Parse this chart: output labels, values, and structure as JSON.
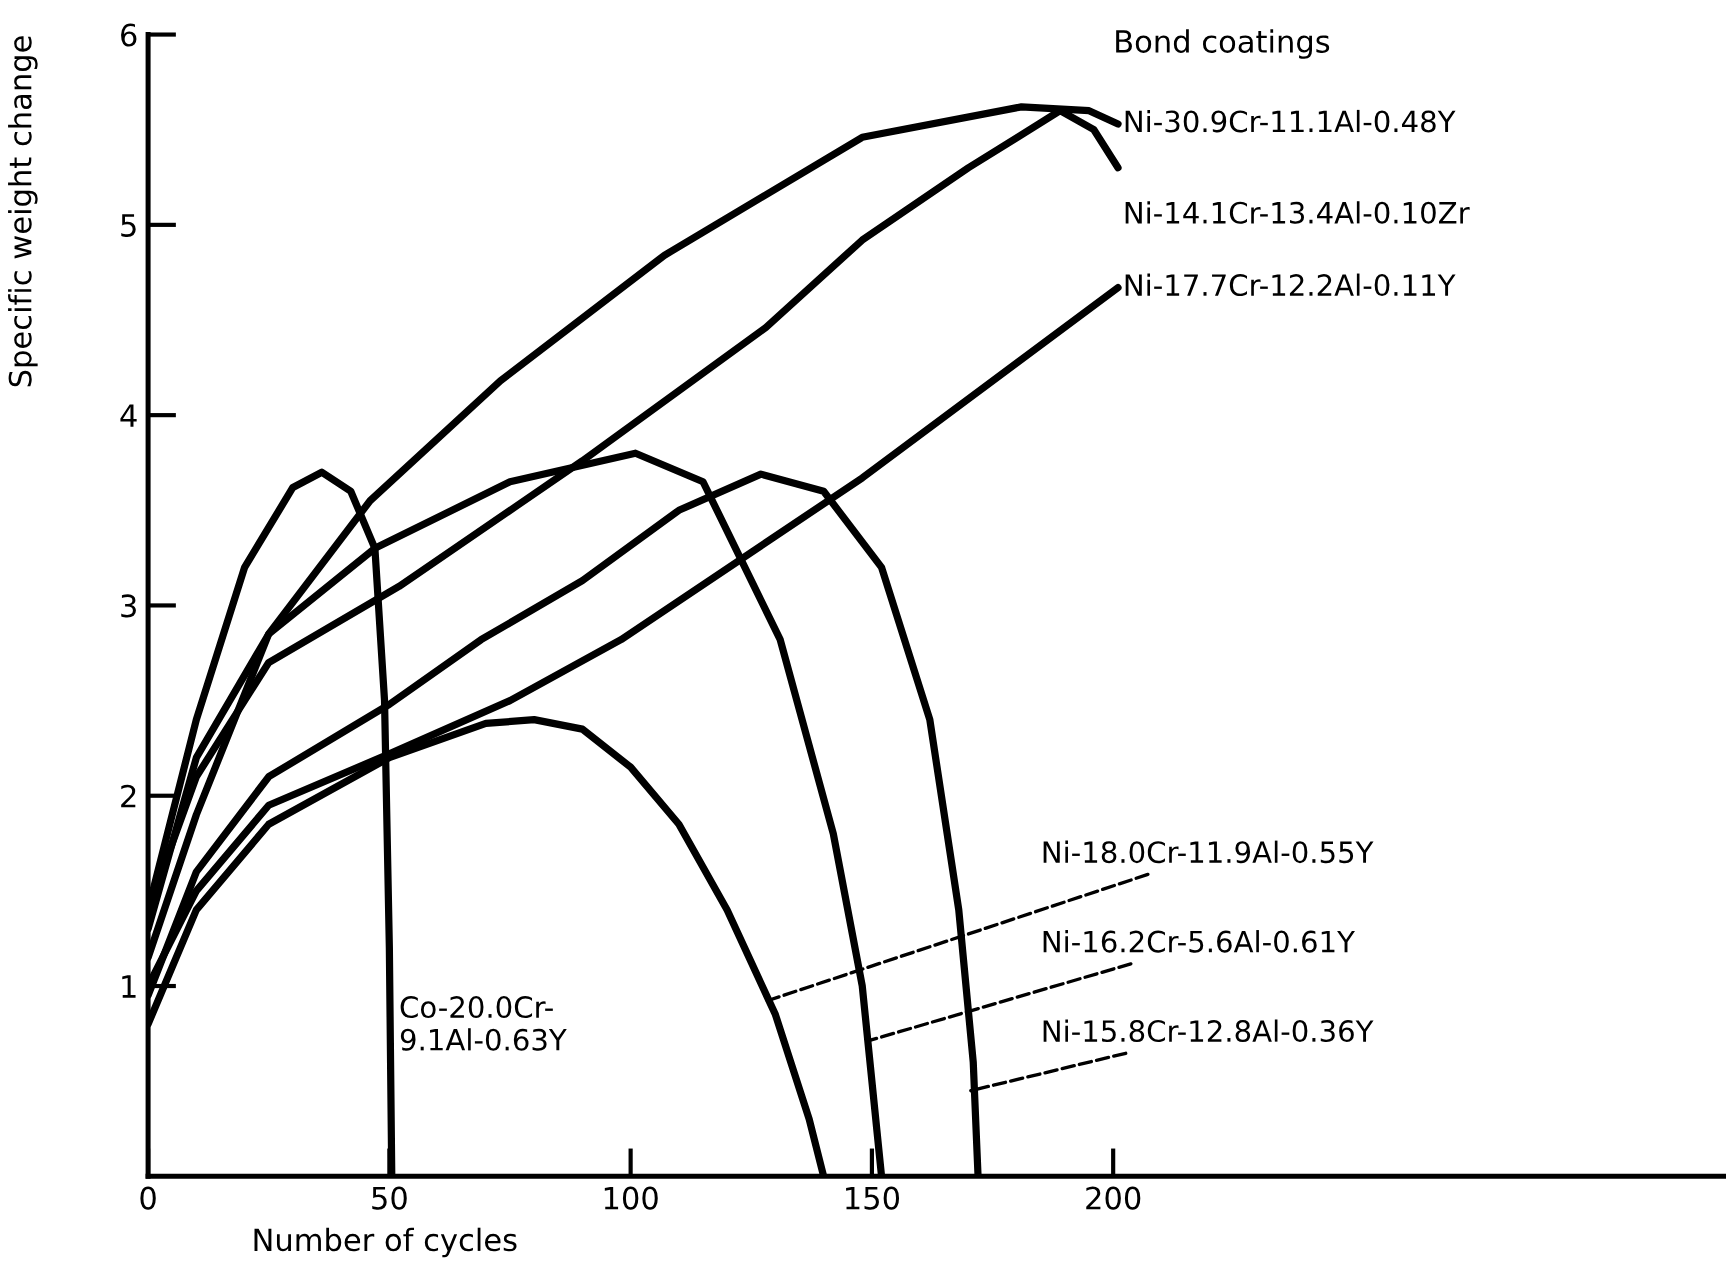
{
  "chart_data": {
    "type": "line",
    "xlabel": "Number of cycles",
    "ylabel": "Specific weight change",
    "legend_title": "Bond coatings",
    "xlim": [
      0,
      327
    ],
    "ylim": [
      0,
      6
    ],
    "xticks": [
      0,
      50,
      100,
      150,
      200
    ],
    "yticks": [
      1,
      2,
      3,
      4,
      5,
      6
    ],
    "grid": false,
    "legend": false,
    "marker": "none",
    "line_style": "solid",
    "series": [
      {
        "name": "Ni-30.9Cr-11.1Al-0.48Y",
        "color": "#000000",
        "x": [
          0,
          10,
          25,
          46,
          73,
          107,
          148,
          181,
          195,
          201
        ],
        "values": [
          1.15,
          1.9,
          2.85,
          3.55,
          4.18,
          4.84,
          5.46,
          5.62,
          5.6,
          5.53
        ]
      },
      {
        "name": "Ni-14.1Cr-13.4Al-0.10Zr",
        "color": "#000000",
        "x": [
          0,
          10,
          25,
          52,
          90,
          128,
          148,
          170,
          189,
          196,
          201
        ],
        "values": [
          1.4,
          2.1,
          2.7,
          3.1,
          3.76,
          4.46,
          4.92,
          5.3,
          5.6,
          5.5,
          5.3
        ]
      },
      {
        "name": "Ni-17.7Cr-12.2Al-0.11Y",
        "color": "#000000",
        "x": [
          0,
          10,
          25,
          50,
          75,
          98,
          148,
          201
        ],
        "values": [
          1.0,
          1.5,
          1.95,
          2.22,
          2.5,
          2.82,
          3.67,
          4.67
        ]
      },
      {
        "name": "Ni-18.0Cr-11.9Al-0.55Y",
        "color": "#000000",
        "x": [
          0,
          10,
          25,
          50,
          70,
          80,
          90,
          100,
          110,
          120,
          130,
          137,
          140
        ],
        "values": [
          0.8,
          1.4,
          1.85,
          2.2,
          2.38,
          2.4,
          2.35,
          2.15,
          1.85,
          1.4,
          0.85,
          0.3,
          0
        ]
      },
      {
        "name": "Ni-16.2Cr-5.6Al-0.61Y",
        "color": "#000000",
        "x": [
          0,
          10,
          25,
          47,
          75,
          101,
          115,
          131,
          142,
          148,
          152
        ],
        "values": [
          1.3,
          2.2,
          2.85,
          3.3,
          3.65,
          3.8,
          3.65,
          2.82,
          1.8,
          1.0,
          0
        ]
      },
      {
        "name": "Ni-15.8Cr-12.8Al-0.36Y",
        "color": "#000000",
        "x": [
          0,
          10,
          25,
          50,
          69,
          90,
          110,
          127,
          140,
          152,
          162,
          168,
          171,
          172
        ],
        "values": [
          0.95,
          1.6,
          2.1,
          2.48,
          2.82,
          3.13,
          3.5,
          3.69,
          3.6,
          3.2,
          2.4,
          1.4,
          0.6,
          0
        ]
      },
      {
        "name": "Co-20.0Cr-\n9.1Al-0.63Y",
        "color": "#000000",
        "x": [
          0,
          10,
          20,
          30,
          36,
          42,
          47,
          49,
          50,
          50.5
        ],
        "values": [
          1.4,
          2.4,
          3.2,
          3.62,
          3.7,
          3.6,
          3.3,
          2.5,
          1.2,
          0
        ]
      }
    ]
  }
}
